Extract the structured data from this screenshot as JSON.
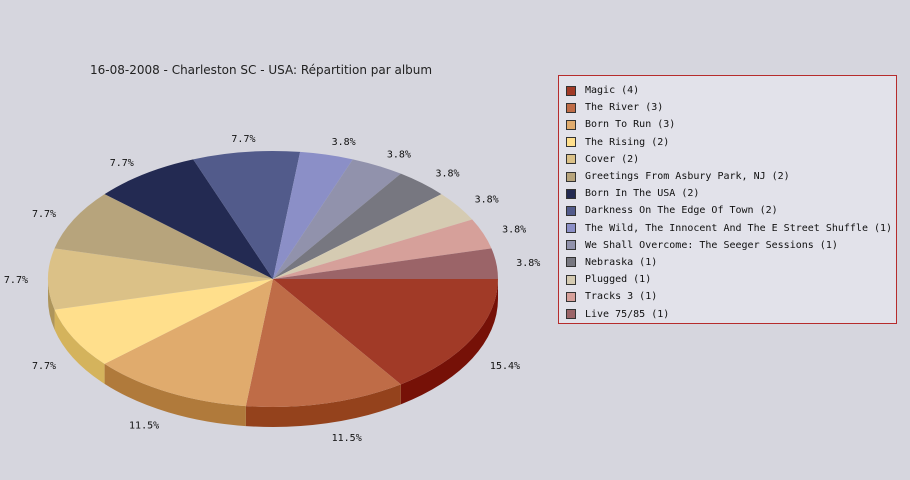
{
  "chart_data": {
    "type": "pie",
    "title": "16-08-2008 - Charleston SC - USA:  Répartition par album",
    "legend_position": "right",
    "slices": [
      {
        "label": "Magic (4)",
        "value": 4,
        "percent_label": "15.4%",
        "color": "#a13a27",
        "side_color": "#761107"
      },
      {
        "label": "The River (3)",
        "value": 3,
        "percent_label": "11.5%",
        "color": "#bf6c47",
        "side_color": "#94421c"
      },
      {
        "label": "Born To Run (3)",
        "value": 3,
        "percent_label": "11.5%",
        "color": "#e0ab6d",
        "side_color": "#b07a3b"
      },
      {
        "label": "The Rising (2)",
        "value": 2,
        "percent_label": "7.7%",
        "color": "#ffdf8c",
        "side_color": "#d4b35c"
      },
      {
        "label": "Cover (2)",
        "value": 2,
        "percent_label": "7.7%",
        "color": "#dbc187",
        "side_color": "#ae955b"
      },
      {
        "label": "Greetings From Asbury Park, NJ (2)",
        "value": 2,
        "percent_label": "7.7%",
        "color": "#b7a47c",
        "side_color": "#8c7b55"
      },
      {
        "label": "Born In The USA (2)",
        "value": 2,
        "percent_label": "7.7%",
        "color": "#232a52",
        "side_color": "#141a36"
      },
      {
        "label": "Darkness On The Edge Of Town (2)",
        "value": 2,
        "percent_label": "7.7%",
        "color": "#525b8b",
        "side_color": "#363d66"
      },
      {
        "label": "The Wild, The Innocent And The E Street Shuffle (1)",
        "value": 1,
        "percent_label": "3.8%",
        "color": "#8b8fc7",
        "side_color": "#6469a0"
      },
      {
        "label": "We Shall Overcome: The Seeger Sessions (1)",
        "value": 1,
        "percent_label": "3.8%",
        "color": "#9192ac",
        "side_color": "#6b6c85"
      },
      {
        "label": "Nebraska (1)",
        "value": 1,
        "percent_label": "3.8%",
        "color": "#777780",
        "side_color": "#53535c"
      },
      {
        "label": "Plugged (1)",
        "value": 1,
        "percent_label": "3.8%",
        "color": "#d5cbb2",
        "side_color": "#aaa087"
      },
      {
        "label": "Tracks 3 (1)",
        "value": 1,
        "percent_label": "3.8%",
        "color": "#d6a09a",
        "side_color": "#ab7770"
      },
      {
        "label": "Live 75/85 (1)",
        "value": 1,
        "percent_label": "3.8%",
        "color": "#9b6468",
        "side_color": "#733f43"
      }
    ]
  }
}
